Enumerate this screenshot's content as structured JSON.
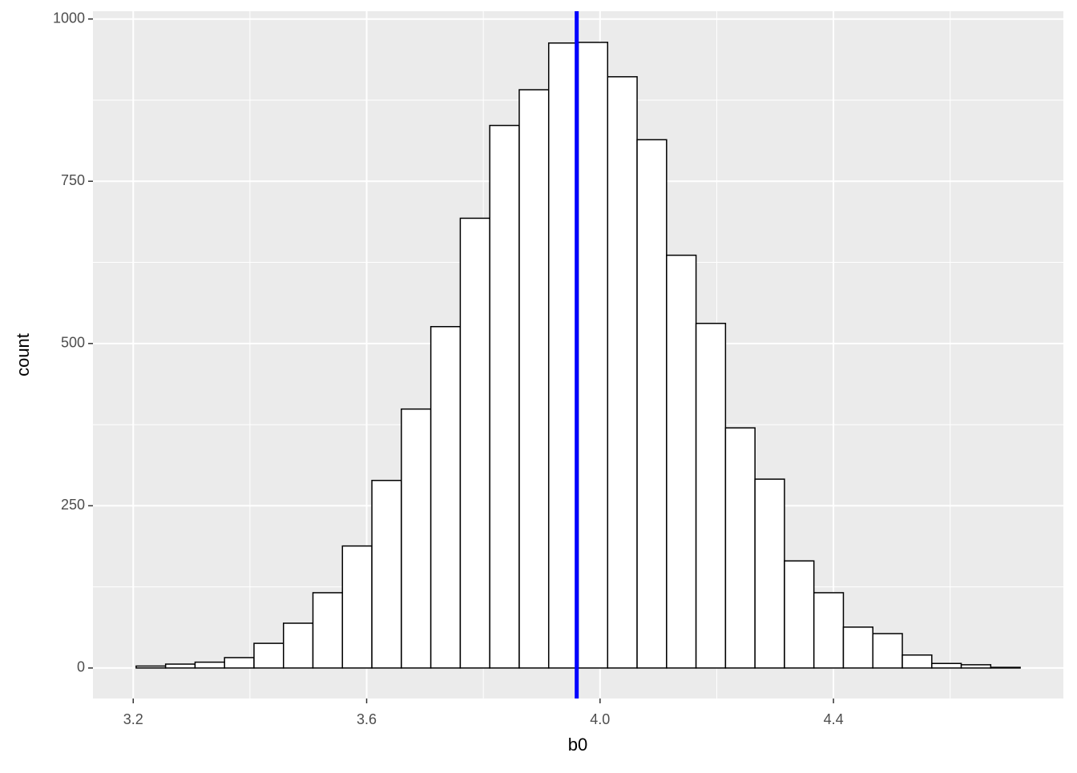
{
  "chart_data": {
    "type": "histogram",
    "x_label": "b0",
    "y_label": "count",
    "bins": [
      3.205,
      3.2555,
      3.306,
      3.3565,
      3.407,
      3.4575,
      3.508,
      3.5585,
      3.609,
      3.6595,
      3.71,
      3.7605,
      3.811,
      3.8615,
      3.912,
      3.9625,
      4.013,
      4.0635,
      4.114,
      4.1645,
      4.215,
      4.2655,
      4.316,
      4.3665,
      4.417,
      4.4675,
      4.518,
      4.5685,
      4.619,
      4.6695,
      4.72
    ],
    "values": [
      3,
      6,
      9,
      16,
      38,
      69,
      116,
      188,
      289,
      399,
      526,
      693,
      836,
      891,
      963,
      964,
      911,
      814,
      636,
      531,
      370,
      291,
      165,
      116,
      63,
      53,
      20,
      7,
      5,
      1
    ],
    "fill": "#ffffff",
    "edge_color": "#000000",
    "vline": {
      "value": 3.96,
      "color": "#0000ff"
    },
    "xlim": [
      3.131,
      4.794
    ],
    "ylim": [
      -47,
      1012
    ],
    "xticks": [
      3.2,
      3.6,
      {
        "value": 4,
        "label": "4.0"
      },
      4.4
    ],
    "yticks": [
      0,
      250,
      500,
      750,
      1000
    ],
    "minor_xticks": [
      3.4,
      3.8,
      4.2,
      4.6
    ],
    "minor_yticks": [
      125,
      375,
      625,
      875
    ],
    "grid": true
  }
}
